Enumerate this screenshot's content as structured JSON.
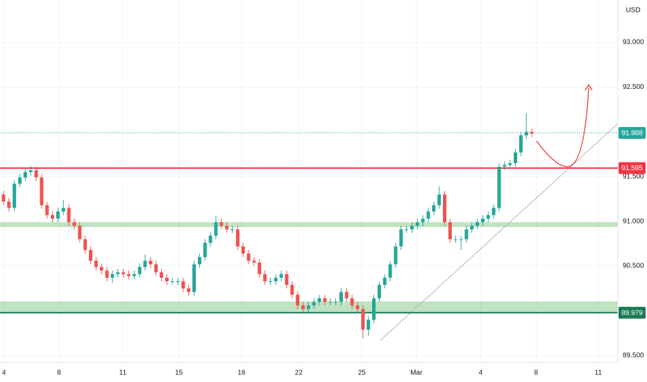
{
  "chart_data": {
    "type": "candlestick",
    "currency": "USD",
    "up_color": "#26a69a",
    "down_color": "#ef5350",
    "grid": true,
    "ylim": [
      89.422,
      93.473
    ],
    "yticks": [
      {
        "value": 89.5,
        "label": "89.500"
      },
      {
        "value": 90,
        "label": "90.000"
      },
      {
        "value": 90.5,
        "label": "90.500"
      },
      {
        "value": 91,
        "label": "91.000"
      },
      {
        "value": 91.5,
        "label": "91.500"
      },
      {
        "value": 92,
        "label": "92.000"
      },
      {
        "value": 92.5,
        "label": "92.500"
      },
      {
        "value": 93,
        "label": "93.000"
      }
    ],
    "xlim": [
      -0.64,
      112.8
    ],
    "xticks": [
      {
        "value": 0.1,
        "label": "4"
      },
      {
        "value": 10.2,
        "label": "8"
      },
      {
        "value": 21.9,
        "label": "11"
      },
      {
        "value": 32.2,
        "label": "15"
      },
      {
        "value": 43.7,
        "label": "18"
      },
      {
        "value": 54.2,
        "label": "22"
      },
      {
        "value": 65.8,
        "label": "25"
      },
      {
        "value": 75.8,
        "label": "Mar"
      },
      {
        "value": 87.6,
        "label": "4"
      },
      {
        "value": 97.8,
        "label": "8"
      },
      {
        "value": 109.2,
        "label": "11"
      }
    ],
    "price_lines": [
      {
        "value": 91.988,
        "color": "#26a69a",
        "style": "dotted"
      },
      {
        "value": 91.595,
        "color": "#f23645",
        "style": "solid"
      },
      {
        "value": 89.979,
        "color": "#1b7a55",
        "style": "solid"
      }
    ],
    "open": [
      91.3,
      91.22,
      91.15,
      91.42,
      91.49,
      91.55,
      91.57,
      91.49,
      91.18,
      91.07,
      91.03,
      91.11,
      91.15,
      90.99,
      90.95,
      90.8,
      90.68,
      90.56,
      90.49,
      90.45,
      90.37,
      90.41,
      90.43,
      90.41,
      90.39,
      90.41,
      90.49,
      90.56,
      90.52,
      90.43,
      90.37,
      90.33,
      90.33,
      90.33,
      90.25,
      90.21,
      90.52,
      90.6,
      90.76,
      90.84,
      90.99,
      90.95,
      90.91,
      90.91,
      90.72,
      90.64,
      90.56,
      90.54,
      90.41,
      90.33,
      90.33,
      90.37,
      90.41,
      90.29,
      90.18,
      90.06,
      90.02,
      90.06,
      90.1,
      90.14,
      90.1,
      90.1,
      90.1,
      90.21,
      90.14,
      90.06,
      90.02,
      89.79,
      89.9,
      90.14,
      90.29,
      90.37,
      90.52,
      90.72,
      90.91,
      90.91,
      90.95,
      90.99,
      91.03,
      91.11,
      91.18,
      91.3,
      90.99,
      90.8,
      90.8,
      90.8,
      90.91,
      90.95,
      90.99,
      91.03,
      91.07,
      91.15,
      91.61,
      91.63,
      91.65,
      91.77,
      91.96,
      92.0
    ],
    "high": [
      91.34,
      91.26,
      91.46,
      91.53,
      91.59,
      91.62,
      91.61,
      91.53,
      91.22,
      91.11,
      91.15,
      91.24,
      91.19,
      91.03,
      90.99,
      90.84,
      90.72,
      90.6,
      90.53,
      90.49,
      90.45,
      90.47,
      90.47,
      90.45,
      90.45,
      90.53,
      90.63,
      90.6,
      90.56,
      90.47,
      90.41,
      90.37,
      90.37,
      90.37,
      90.29,
      90.56,
      90.64,
      90.8,
      90.88,
      91.06,
      91.03,
      90.99,
      90.95,
      90.95,
      90.76,
      90.68,
      90.6,
      90.58,
      90.45,
      90.37,
      90.41,
      90.45,
      90.45,
      90.33,
      90.22,
      90.1,
      90.1,
      90.14,
      90.18,
      90.18,
      90.14,
      90.14,
      90.25,
      90.25,
      90.18,
      90.1,
      90.06,
      89.94,
      90.18,
      90.33,
      90.41,
      90.56,
      90.76,
      90.95,
      90.95,
      90.99,
      91.03,
      91.07,
      91.15,
      91.22,
      91.39,
      91.34,
      91.03,
      90.84,
      90.84,
      90.95,
      90.99,
      91.03,
      91.07,
      91.11,
      91.19,
      91.65,
      91.67,
      91.69,
      91.81,
      92.0,
      92.21,
      92.04
    ],
    "low": [
      91.18,
      91.11,
      91.11,
      91.38,
      91.45,
      91.51,
      91.45,
      91.14,
      91.03,
      90.99,
      90.99,
      91.07,
      90.95,
      90.91,
      90.76,
      90.64,
      90.52,
      90.45,
      90.41,
      90.33,
      90.31,
      90.37,
      90.37,
      90.35,
      90.35,
      90.37,
      90.45,
      90.48,
      90.39,
      90.33,
      90.29,
      90.29,
      90.29,
      90.21,
      90.17,
      90.17,
      90.48,
      90.56,
      90.72,
      90.8,
      90.91,
      90.87,
      90.87,
      90.68,
      90.6,
      90.52,
      90.5,
      90.37,
      90.29,
      90.29,
      90.29,
      90.33,
      90.25,
      90.14,
      90.02,
      89.98,
      89.98,
      90.02,
      90.06,
      90.06,
      90.06,
      90.06,
      90.06,
      90.1,
      90.02,
      89.98,
      89.69,
      89.72,
      89.86,
      90.1,
      90.25,
      90.33,
      90.48,
      90.68,
      90.87,
      90.87,
      90.91,
      90.95,
      90.99,
      91.07,
      91.14,
      90.95,
      90.76,
      90.76,
      90.68,
      90.76,
      90.87,
      90.91,
      90.95,
      90.99,
      91.03,
      91.11,
      91.57,
      91.59,
      91.61,
      91.73,
      91.92,
      91.94
    ],
    "close": [
      91.22,
      91.15,
      91.42,
      91.49,
      91.55,
      91.57,
      91.49,
      91.18,
      91.07,
      91.03,
      91.11,
      91.15,
      90.99,
      90.95,
      90.8,
      90.68,
      90.56,
      90.49,
      90.45,
      90.37,
      90.41,
      90.43,
      90.41,
      90.39,
      90.41,
      90.49,
      90.56,
      90.52,
      90.43,
      90.37,
      90.33,
      90.33,
      90.33,
      90.25,
      90.21,
      90.52,
      90.6,
      90.76,
      90.84,
      90.99,
      90.95,
      90.91,
      90.91,
      90.72,
      90.64,
      90.56,
      90.54,
      90.41,
      90.33,
      90.33,
      90.37,
      90.41,
      90.29,
      90.18,
      90.06,
      90.02,
      90.06,
      90.1,
      90.14,
      90.1,
      90.1,
      90.1,
      90.21,
      90.14,
      90.06,
      90.02,
      89.79,
      89.9,
      90.14,
      90.29,
      90.37,
      90.52,
      90.72,
      90.91,
      90.91,
      90.95,
      90.99,
      91.03,
      91.11,
      91.18,
      91.3,
      90.99,
      90.8,
      90.8,
      90.8,
      90.91,
      90.95,
      90.99,
      91.03,
      91.07,
      91.15,
      91.61,
      91.63,
      91.65,
      91.77,
      91.96,
      92.0,
      91.98
    ]
  }
}
